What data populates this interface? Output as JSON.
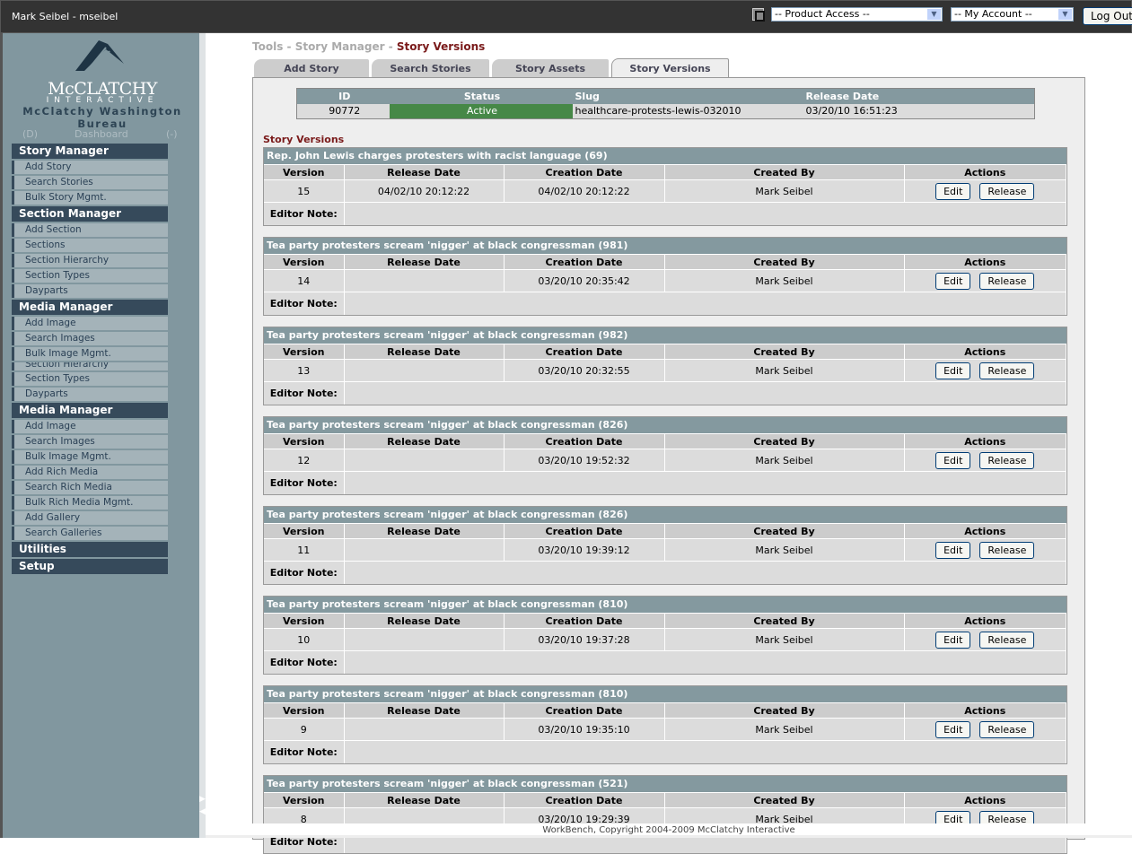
{
  "topbar": {
    "user": "Mark Seibel - mseibel",
    "product_access": "-- Product Access --",
    "my_account": "-- My Account --",
    "logout": "Log Out"
  },
  "logo": {
    "brand": "McCLATCHY",
    "sub": "INTERACTIVE",
    "bureau": "McClatchy Washington Bureau"
  },
  "dashboard": {
    "left": "(D)",
    "label": "Dashboard",
    "right": "(-)"
  },
  "sidebar": [
    {
      "type": "h",
      "label": "Story Manager"
    },
    {
      "type": "i",
      "label": "Add Story"
    },
    {
      "type": "i",
      "label": "Search Stories"
    },
    {
      "type": "i",
      "label": "Bulk Story Mgmt."
    },
    {
      "type": "h",
      "label": "Section Manager"
    },
    {
      "type": "i",
      "label": "Add Section"
    },
    {
      "type": "i",
      "label": "Sections"
    },
    {
      "type": "i",
      "label": "Section Hierarchy"
    },
    {
      "type": "i",
      "label": "Section Types"
    },
    {
      "type": "i",
      "label": "Dayparts"
    },
    {
      "type": "h",
      "label": "Media Manager"
    },
    {
      "type": "i",
      "label": "Add Image"
    },
    {
      "type": "i",
      "label": "Search Images"
    },
    {
      "type": "i",
      "label": "Bulk Image Mgmt."
    },
    {
      "type": "c",
      "label": "Section Hierarchy"
    },
    {
      "type": "i",
      "label": "Section Types"
    },
    {
      "type": "i",
      "label": "Dayparts"
    },
    {
      "type": "h",
      "label": "Media Manager"
    },
    {
      "type": "i",
      "label": "Add Image"
    },
    {
      "type": "i",
      "label": "Search Images"
    },
    {
      "type": "i",
      "label": "Bulk Image Mgmt."
    },
    {
      "type": "i",
      "label": "Add Rich Media"
    },
    {
      "type": "i",
      "label": "Search Rich Media"
    },
    {
      "type": "i",
      "label": "Bulk Rich Media Mgmt."
    },
    {
      "type": "i",
      "label": "Add Gallery"
    },
    {
      "type": "i",
      "label": "Search Galleries"
    },
    {
      "type": "h",
      "label": "Utilities"
    },
    {
      "type": "h",
      "label": "Setup"
    }
  ],
  "breadcrumb": {
    "a": "Tools",
    "b": "Story Manager",
    "current": "Story Versions",
    "sep": " - "
  },
  "tabs": [
    "Add Story",
    "Search Stories",
    "Story Assets",
    "Story Versions"
  ],
  "story": {
    "headers": [
      "ID",
      "Status",
      "Slug",
      "Release Date"
    ],
    "id": "90772",
    "status": "Active",
    "slug": "healthcare-protests-lewis-032010",
    "release_date": "03/20/10 16:51:23",
    "status_color": "#468847"
  },
  "versions_label": "Story Versions",
  "columns": [
    "Version",
    "Release Date",
    "Creation Date",
    "Created By",
    "Actions"
  ],
  "editor_note_label": "Editor Note:",
  "edit_label": "Edit",
  "release_label": "Release",
  "versions": [
    {
      "title": "Rep. John Lewis charges protesters with racist language  (69)",
      "version": "15",
      "release": "04/02/10 20:12:22",
      "created": "04/02/10 20:12:22",
      "by": "Mark Seibel"
    },
    {
      "title": "Tea party protesters scream 'nigger' at black congressman  (981)",
      "version": "14",
      "release": "",
      "created": "03/20/10 20:35:42",
      "by": "Mark Seibel"
    },
    {
      "title": "Tea party protesters scream 'nigger' at black congressman  (982)",
      "version": "13",
      "release": "",
      "created": "03/20/10 20:32:55",
      "by": "Mark Seibel"
    },
    {
      "title": "Tea party protesters scream 'nigger' at black congressman  (826)",
      "version": "12",
      "release": "",
      "created": "03/20/10 19:52:32",
      "by": "Mark Seibel"
    },
    {
      "title": "Tea party protesters scream 'nigger' at black congressman  (826)",
      "version": "11",
      "release": "",
      "created": "03/20/10 19:39:12",
      "by": "Mark Seibel"
    },
    {
      "title": "Tea party protesters scream 'nigger' at black congressman  (810)",
      "version": "10",
      "release": "",
      "created": "03/20/10 19:37:28",
      "by": "Mark Seibel"
    },
    {
      "title": "Tea party protesters scream 'nigger' at black congressman  (810)",
      "version": "9",
      "release": "",
      "created": "03/20/10 19:35:10",
      "by": "Mark Seibel"
    },
    {
      "title": "Tea party protesters scream 'nigger' at black congressman  (521)",
      "version": "8",
      "release": "",
      "created": "03/20/10 19:29:39",
      "by": "Mark Seibel"
    }
  ],
  "footer": "WorkBench, Copyright 2004-2009 McClatchy Interactive"
}
